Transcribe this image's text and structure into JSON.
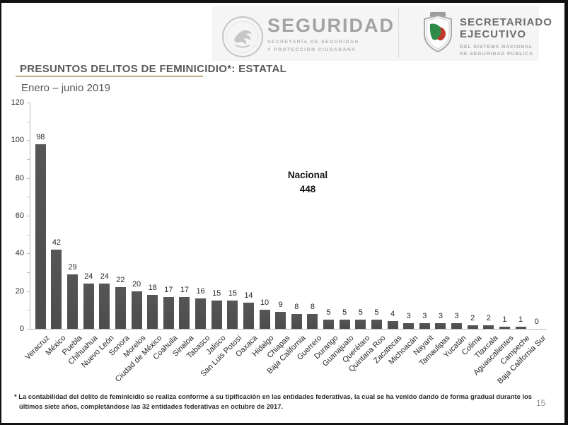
{
  "header": {
    "seguridad_logo": {
      "title": "SEGURIDAD",
      "subtitle_line1": "SECRETARÍA DE SEGURIDAD",
      "subtitle_line2": "Y PROTECCIÓN CIUDADANA"
    },
    "secretariado_logo": {
      "title_line1": "SECRETARIADO",
      "title_line2": "EJECUTIVO",
      "subtitle_line1": "DEL SISTEMA NACIONAL",
      "subtitle_line2": "DE SEGURIDAD PÚBLICA"
    }
  },
  "title": "PRESUNTOS DELITOS DE FEMINICIDIO*: ESTATAL",
  "subtitle": "Enero – junio 2019",
  "chart_data": {
    "type": "bar",
    "title": "PRESUNTOS DELITOS DE FEMINICIDIO*: ESTATAL",
    "subtitle": "Enero – junio 2019",
    "categories": [
      "Veracruz",
      "México",
      "Puebla",
      "Chihuahua",
      "Nuevo León",
      "Sonora",
      "Morelos",
      "Ciudad de México",
      "Coahuila",
      "Sinaloa",
      "Tabasco",
      "Jalisco",
      "San Luis Potosí",
      "Oaxaca",
      "Hidalgo",
      "Chiapas",
      "Baja California",
      "Guerrero",
      "Durango",
      "Guanajuato",
      "Querétaro",
      "Quintana Roo",
      "Zacatecas",
      "Michoacán",
      "Nayarit",
      "Tamaulipas",
      "Yucatán",
      "Colima",
      "Tlaxcala",
      "Aguascalientes",
      "Campeche",
      "Baja California Sur"
    ],
    "values": [
      98,
      42,
      29,
      24,
      24,
      22,
      20,
      18,
      17,
      17,
      16,
      15,
      15,
      14,
      10,
      9,
      8,
      8,
      5,
      5,
      5,
      5,
      4,
      3,
      3,
      3,
      3,
      2,
      2,
      1,
      1,
      0
    ],
    "xlabel": "",
    "ylabel": "",
    "ylim": [
      0,
      120
    ],
    "yticks": [
      0,
      20,
      40,
      60,
      80,
      100,
      120
    ],
    "minor_tick_step": 10,
    "grid": false,
    "legend": false,
    "value_labels": true,
    "bar_color": "#515151",
    "annotation": {
      "label": "Nacional",
      "value": "448"
    }
  },
  "annotation": {
    "label": "Nacional",
    "value": "448"
  },
  "footnote": {
    "line1": "* La contabilidad del delito de feminicidio se realiza conforme a su tipificación en las entidades federativas, la cual se ha venido dando de forma gradual durante los",
    "line2": "últimos siete años, completándose las 32 entidades federativas en octubre de 2017."
  },
  "page_number": "15",
  "colors": {
    "accent_underline": "#c3ae84",
    "bar": "#515151",
    "title_text": "#595959",
    "border": "#111111"
  }
}
